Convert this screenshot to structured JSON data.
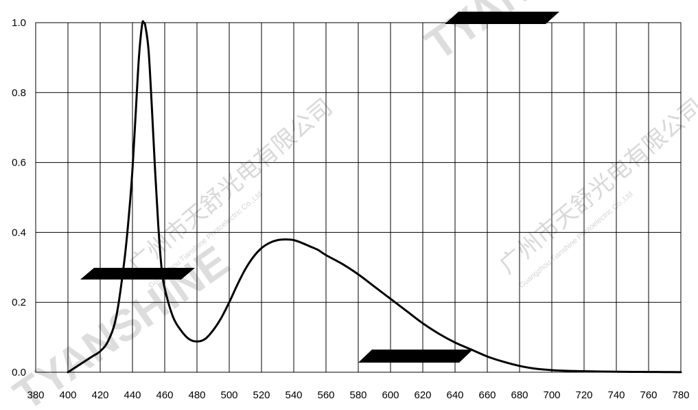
{
  "chart_data": {
    "type": "line",
    "title": "",
    "xlabel": "",
    "ylabel": "",
    "xlim": [
      380,
      780
    ],
    "ylim": [
      0,
      1.0
    ],
    "x_ticks": [
      "380",
      "400",
      "420",
      "440",
      "460",
      "480",
      "500",
      "520",
      "540",
      "560",
      "580",
      "600",
      "620",
      "640",
      "660",
      "680",
      "700",
      "720",
      "740",
      "760",
      "780"
    ],
    "y_ticks": [
      "0.0",
      "0.2",
      "0.4",
      "0.6",
      "0.8",
      "1.0"
    ],
    "grid": true,
    "series": [
      {
        "x": [
          400,
          405,
          410,
          415,
          420,
          425,
          430,
          435,
          438,
          440,
          442,
          444,
          446,
          447,
          448,
          450,
          452,
          454,
          456,
          458,
          460,
          465,
          470,
          475,
          480,
          485,
          490,
          495,
          500,
          505,
          510,
          515,
          520,
          525,
          530,
          535,
          540,
          545,
          550,
          555,
          560,
          570,
          580,
          590,
          600,
          610,
          620,
          630,
          640,
          650,
          660,
          670,
          680,
          690,
          700,
          710,
          720,
          730,
          740,
          750,
          760,
          770,
          780
        ],
        "y": [
          0.0,
          0.015,
          0.03,
          0.045,
          0.06,
          0.09,
          0.16,
          0.32,
          0.46,
          0.58,
          0.74,
          0.9,
          0.995,
          1.0,
          0.99,
          0.92,
          0.76,
          0.58,
          0.42,
          0.3,
          0.24,
          0.16,
          0.12,
          0.095,
          0.088,
          0.095,
          0.12,
          0.155,
          0.2,
          0.25,
          0.295,
          0.33,
          0.355,
          0.37,
          0.378,
          0.38,
          0.378,
          0.37,
          0.36,
          0.35,
          0.335,
          0.31,
          0.28,
          0.245,
          0.21,
          0.175,
          0.14,
          0.11,
          0.085,
          0.065,
          0.045,
          0.03,
          0.018,
          0.01,
          0.006,
          0.004,
          0.003,
          0.002,
          0.0015,
          0.001,
          0.0008,
          0.0005,
          0.0003
        ],
        "color": "#000000"
      }
    ]
  },
  "watermarks": [
    "TYANSHINE",
    "TYANSHINE",
    "广州市天舒光电有限公司",
    "Guangzhou Tianshine Photoelectric Co.,Ltd",
    "广州市天舒光电有限公司",
    "Guangzhou Tianshine Photoelectric Co.,Ltd"
  ]
}
